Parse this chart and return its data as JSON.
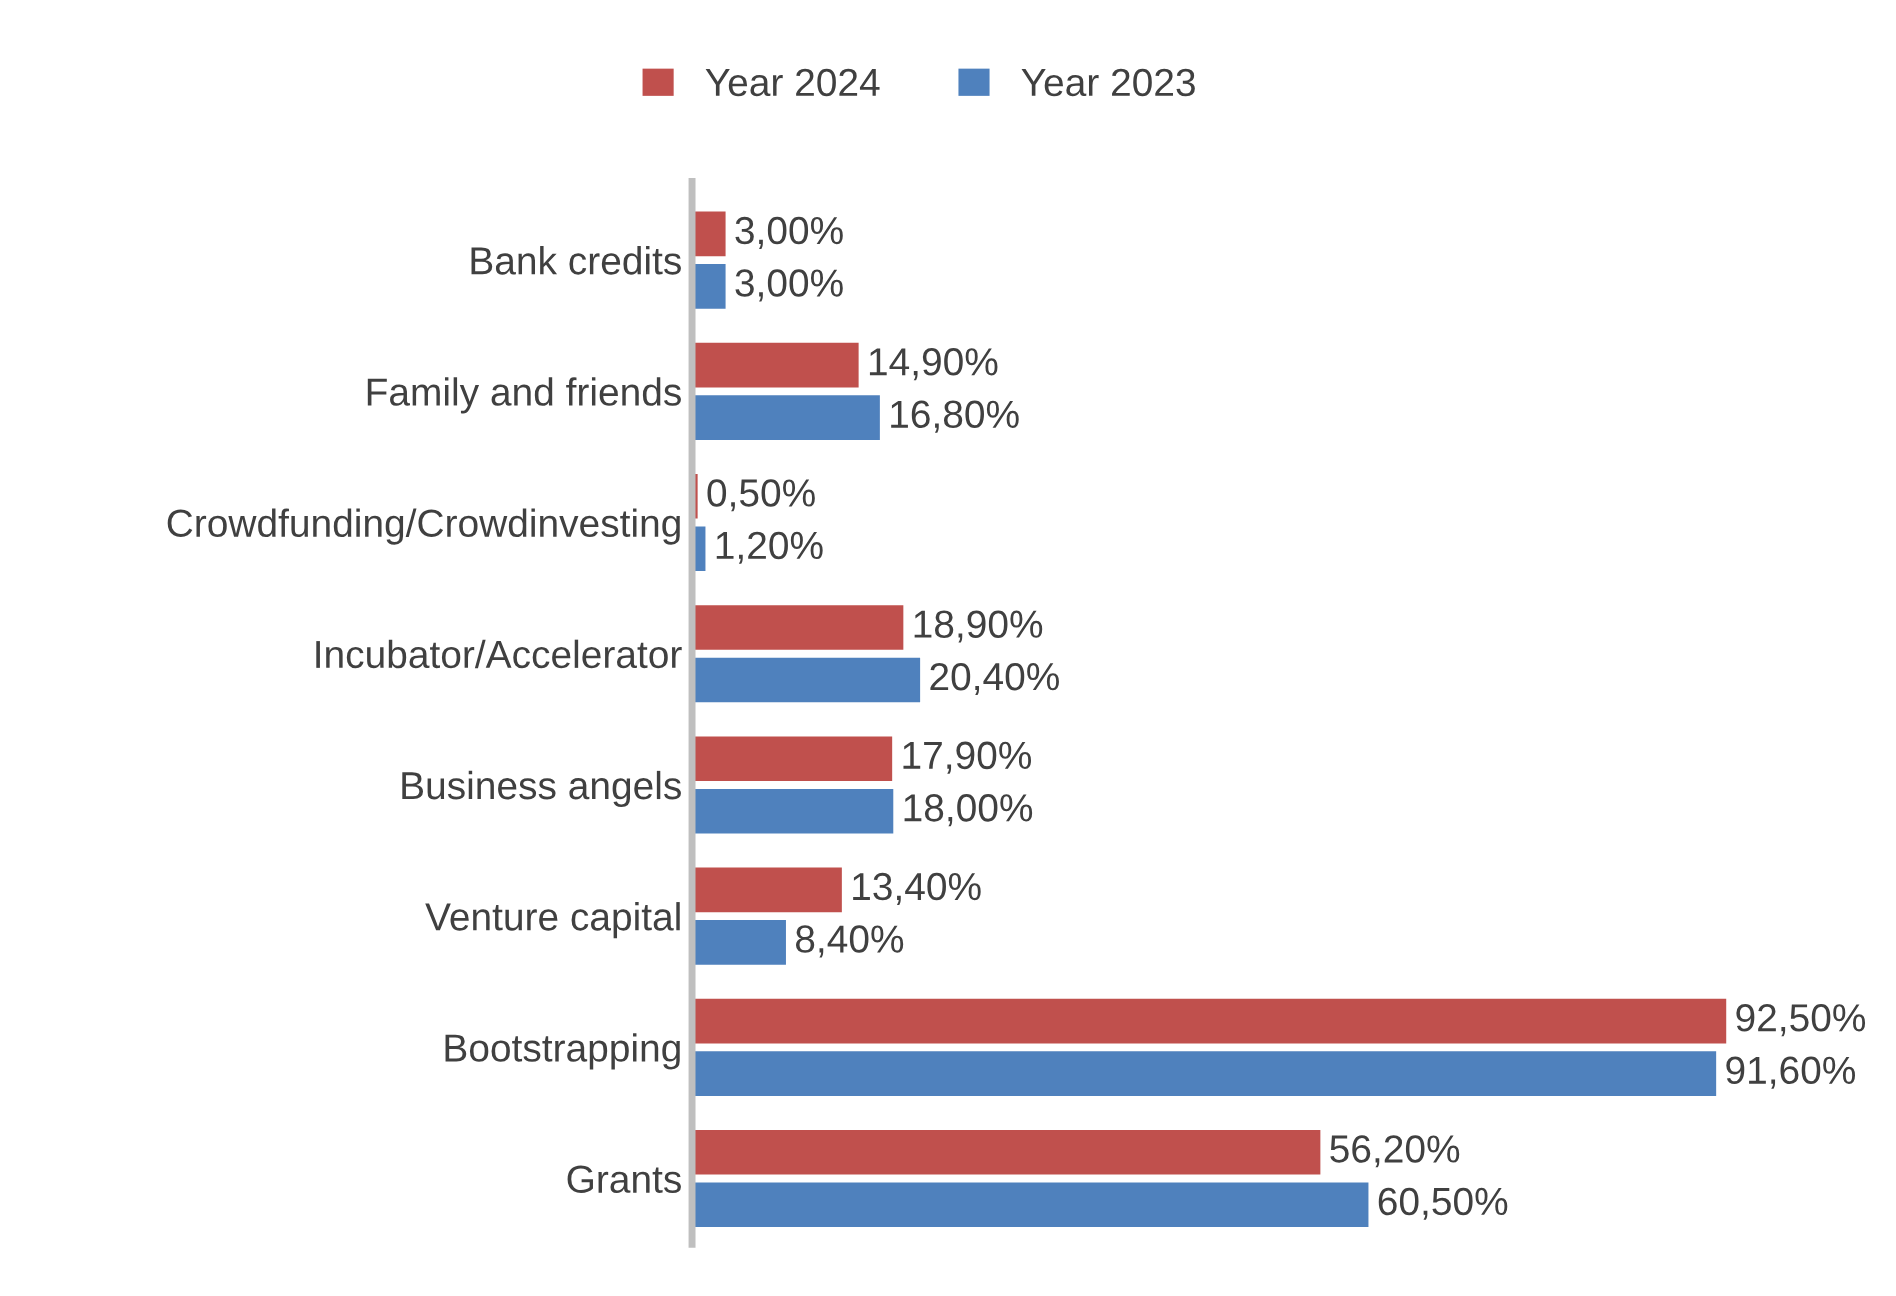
{
  "chart_data": {
    "type": "bar",
    "orientation": "horizontal",
    "legend": "top",
    "grid": false,
    "categories": [
      "Bank credits",
      "Family and friends",
      "Crowdfunding/Crowdinvesting",
      "Incubator/Accelerator",
      "Business angels",
      "Venture capital",
      "Bootstrapping",
      "Grants"
    ],
    "series": [
      {
        "name": "Year 2024",
        "color": "#c0504d",
        "values": [
          3.0,
          14.9,
          0.5,
          18.9,
          17.9,
          13.4,
          92.5,
          56.2
        ],
        "value_labels": [
          "3,00%",
          "14,90%",
          "0,50%",
          "18,90%",
          "17,90%",
          "13,40%",
          "92,50%",
          "56,20%"
        ]
      },
      {
        "name": "Year 2023",
        "color": "#4f81bd",
        "values": [
          3.0,
          16.8,
          1.2,
          20.4,
          18.0,
          8.4,
          91.6,
          60.5
        ],
        "value_labels": [
          "3,00%",
          "16,80%",
          "1,20%",
          "20,40%",
          "18,00%",
          "8,40%",
          "91,60%",
          "60,50%"
        ]
      }
    ]
  }
}
